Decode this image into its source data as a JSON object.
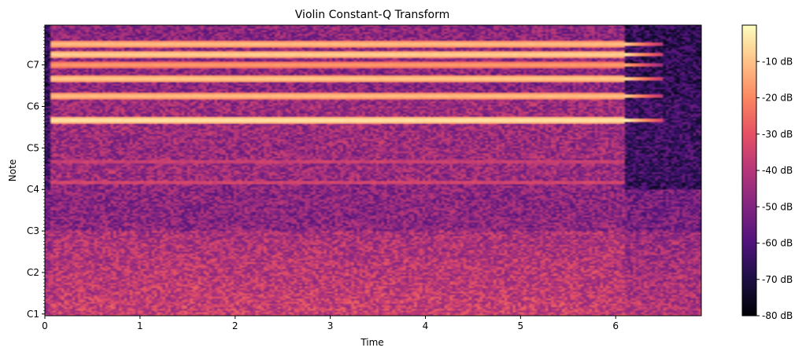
{
  "chart_data": {
    "type": "heatmap",
    "title": "Violin Constant-Q Transform",
    "xlabel": "Time",
    "ylabel": "Note",
    "xlim": [
      0,
      6.9
    ],
    "x_ticks": [
      0,
      1,
      2,
      3,
      4,
      5,
      6
    ],
    "y_note_range": [
      "C1",
      "B7"
    ],
    "y_ticks": [
      "C1",
      "C2",
      "C3",
      "C4",
      "C5",
      "C6",
      "C7"
    ],
    "colorbar": {
      "range_db": [
        -80,
        0
      ],
      "ticks": [
        -10,
        -20,
        -30,
        -40,
        -50,
        -60,
        -70,
        -80
      ],
      "tick_labels": [
        "-10 dB",
        "-20 dB",
        "-30 dB",
        "-40 dB",
        "-50 dB",
        "-60 dB",
        "-70 dB",
        "-80 dB"
      ],
      "colormap": "magma"
    },
    "note_end_time": 6.1,
    "harmonic_bands": [
      {
        "note": "G#5",
        "db": -2
      },
      {
        "note": "D#6",
        "db": -8
      },
      {
        "note": "G#6",
        "db": -6
      },
      {
        "note": "C7",
        "db": -14
      },
      {
        "note": "D#7",
        "db": -5
      },
      {
        "note": "F#7",
        "db": -8
      }
    ],
    "grid": false
  }
}
